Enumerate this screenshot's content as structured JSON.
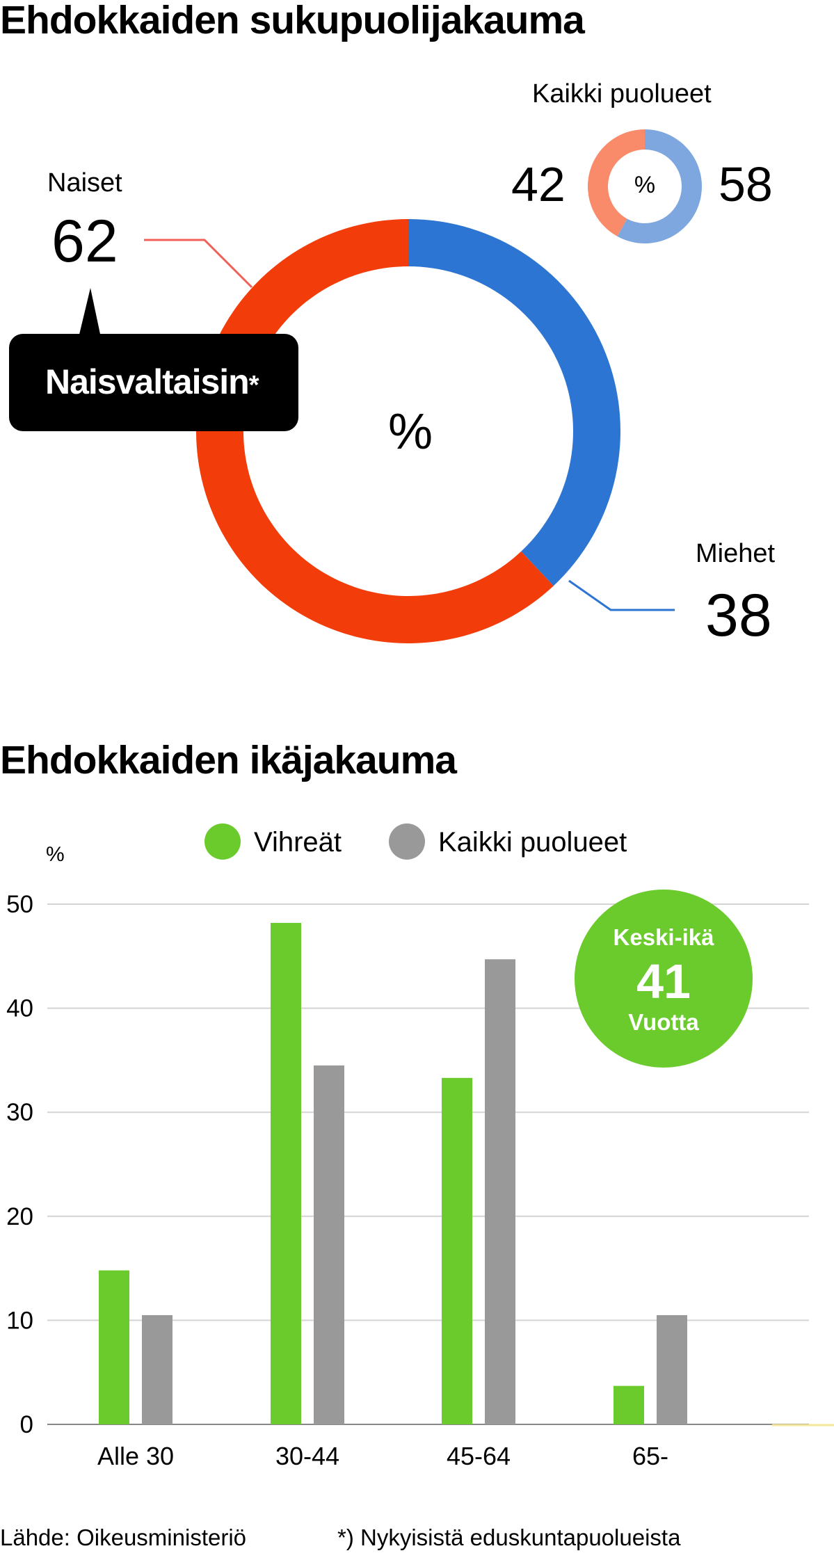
{
  "gender": {
    "title": "Ehdokkaiden sukupuolijakauma",
    "main_chart": {
      "type": "pie",
      "center_label": "%",
      "slices": [
        {
          "name": "Naiset",
          "value": 62,
          "color": "#F23D0A"
        },
        {
          "name": "Miehet",
          "value": 38,
          "color": "#2D75D2"
        }
      ]
    },
    "callout": {
      "text": "Naisvaltaisin",
      "mark": "*"
    },
    "all_parties": {
      "type": "pie",
      "title": "Kaikki puolueet",
      "center_label": "%",
      "slices": [
        {
          "name": "Naiset",
          "value": 42,
          "color": "#F98B6B"
        },
        {
          "name": "Miehet",
          "value": 58,
          "color": "#7FA7DF"
        }
      ]
    }
  },
  "age": {
    "title": "Ehdokkaiden ikäjakauma",
    "unit_label": "%",
    "average_badge": {
      "label": "Keski-ikä",
      "value": "41",
      "unit": "Vuotta",
      "color": "#6BCB2C"
    }
  },
  "chart_data": [
    {
      "type": "pie",
      "title": "Ehdokkaiden sukupuolijakauma",
      "categories": [
        "Naiset",
        "Miehet"
      ],
      "values": [
        62,
        38
      ],
      "unit": "%"
    },
    {
      "type": "pie",
      "title": "Kaikki puolueet",
      "categories": [
        "Naiset",
        "Miehet"
      ],
      "values": [
        42,
        58
      ],
      "unit": "%"
    },
    {
      "type": "bar",
      "title": "Ehdokkaiden ikäjakauma",
      "ylabel": "%",
      "xlabel": "",
      "ylim": [
        0,
        50
      ],
      "yticks": [
        0,
        10,
        20,
        30,
        40,
        50
      ],
      "grid": true,
      "legend_position": "top-center",
      "categories": [
        "Alle 30",
        "30-44",
        "45-64",
        "65-"
      ],
      "series": [
        {
          "name": "Vihreät",
          "color": "#6BCB2C",
          "values": [
            14.8,
            48.2,
            33.3,
            3.7
          ]
        },
        {
          "name": "Kaikki puolueet",
          "color": "#999999",
          "values": [
            10.5,
            34.5,
            44.7,
            10.5
          ]
        }
      ]
    }
  ],
  "footer": {
    "source": "Lähde: Oikeusministeriö",
    "note": "*) Nykyisistä eduskuntapuolueista"
  }
}
